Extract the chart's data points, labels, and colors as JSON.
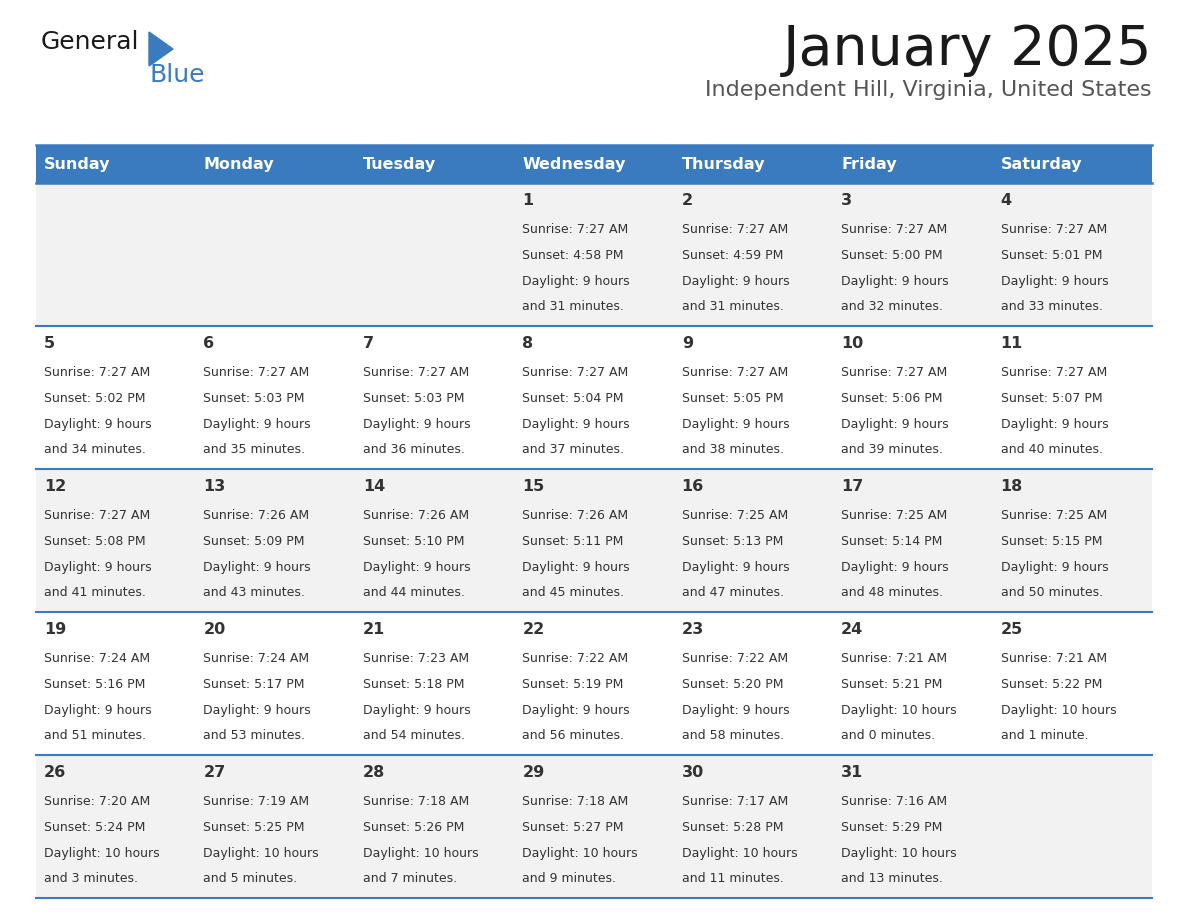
{
  "title": "January 2025",
  "subtitle": "Independent Hill, Virginia, United States",
  "header_color": "#3a7abf",
  "header_text_color": "#ffffff",
  "cell_bg_odd": "#f2f2f2",
  "cell_bg_even": "#ffffff",
  "day_num_color": "#333333",
  "text_color": "#333333",
  "border_color": "#3a7abf",
  "days_of_week": [
    "Sunday",
    "Monday",
    "Tuesday",
    "Wednesday",
    "Thursday",
    "Friday",
    "Saturday"
  ],
  "calendar": [
    [
      {
        "day": "",
        "sunrise": "",
        "sunset": "",
        "daylight_line1": "",
        "daylight_line2": ""
      },
      {
        "day": "",
        "sunrise": "",
        "sunset": "",
        "daylight_line1": "",
        "daylight_line2": ""
      },
      {
        "day": "",
        "sunrise": "",
        "sunset": "",
        "daylight_line1": "",
        "daylight_line2": ""
      },
      {
        "day": "1",
        "sunrise": "Sunrise: 7:27 AM",
        "sunset": "Sunset: 4:58 PM",
        "daylight_line1": "Daylight: 9 hours",
        "daylight_line2": "and 31 minutes."
      },
      {
        "day": "2",
        "sunrise": "Sunrise: 7:27 AM",
        "sunset": "Sunset: 4:59 PM",
        "daylight_line1": "Daylight: 9 hours",
        "daylight_line2": "and 31 minutes."
      },
      {
        "day": "3",
        "sunrise": "Sunrise: 7:27 AM",
        "sunset": "Sunset: 5:00 PM",
        "daylight_line1": "Daylight: 9 hours",
        "daylight_line2": "and 32 minutes."
      },
      {
        "day": "4",
        "sunrise": "Sunrise: 7:27 AM",
        "sunset": "Sunset: 5:01 PM",
        "daylight_line1": "Daylight: 9 hours",
        "daylight_line2": "and 33 minutes."
      }
    ],
    [
      {
        "day": "5",
        "sunrise": "Sunrise: 7:27 AM",
        "sunset": "Sunset: 5:02 PM",
        "daylight_line1": "Daylight: 9 hours",
        "daylight_line2": "and 34 minutes."
      },
      {
        "day": "6",
        "sunrise": "Sunrise: 7:27 AM",
        "sunset": "Sunset: 5:03 PM",
        "daylight_line1": "Daylight: 9 hours",
        "daylight_line2": "and 35 minutes."
      },
      {
        "day": "7",
        "sunrise": "Sunrise: 7:27 AM",
        "sunset": "Sunset: 5:03 PM",
        "daylight_line1": "Daylight: 9 hours",
        "daylight_line2": "and 36 minutes."
      },
      {
        "day": "8",
        "sunrise": "Sunrise: 7:27 AM",
        "sunset": "Sunset: 5:04 PM",
        "daylight_line1": "Daylight: 9 hours",
        "daylight_line2": "and 37 minutes."
      },
      {
        "day": "9",
        "sunrise": "Sunrise: 7:27 AM",
        "sunset": "Sunset: 5:05 PM",
        "daylight_line1": "Daylight: 9 hours",
        "daylight_line2": "and 38 minutes."
      },
      {
        "day": "10",
        "sunrise": "Sunrise: 7:27 AM",
        "sunset": "Sunset: 5:06 PM",
        "daylight_line1": "Daylight: 9 hours",
        "daylight_line2": "and 39 minutes."
      },
      {
        "day": "11",
        "sunrise": "Sunrise: 7:27 AM",
        "sunset": "Sunset: 5:07 PM",
        "daylight_line1": "Daylight: 9 hours",
        "daylight_line2": "and 40 minutes."
      }
    ],
    [
      {
        "day": "12",
        "sunrise": "Sunrise: 7:27 AM",
        "sunset": "Sunset: 5:08 PM",
        "daylight_line1": "Daylight: 9 hours",
        "daylight_line2": "and 41 minutes."
      },
      {
        "day": "13",
        "sunrise": "Sunrise: 7:26 AM",
        "sunset": "Sunset: 5:09 PM",
        "daylight_line1": "Daylight: 9 hours",
        "daylight_line2": "and 43 minutes."
      },
      {
        "day": "14",
        "sunrise": "Sunrise: 7:26 AM",
        "sunset": "Sunset: 5:10 PM",
        "daylight_line1": "Daylight: 9 hours",
        "daylight_line2": "and 44 minutes."
      },
      {
        "day": "15",
        "sunrise": "Sunrise: 7:26 AM",
        "sunset": "Sunset: 5:11 PM",
        "daylight_line1": "Daylight: 9 hours",
        "daylight_line2": "and 45 minutes."
      },
      {
        "day": "16",
        "sunrise": "Sunrise: 7:25 AM",
        "sunset": "Sunset: 5:13 PM",
        "daylight_line1": "Daylight: 9 hours",
        "daylight_line2": "and 47 minutes."
      },
      {
        "day": "17",
        "sunrise": "Sunrise: 7:25 AM",
        "sunset": "Sunset: 5:14 PM",
        "daylight_line1": "Daylight: 9 hours",
        "daylight_line2": "and 48 minutes."
      },
      {
        "day": "18",
        "sunrise": "Sunrise: 7:25 AM",
        "sunset": "Sunset: 5:15 PM",
        "daylight_line1": "Daylight: 9 hours",
        "daylight_line2": "and 50 minutes."
      }
    ],
    [
      {
        "day": "19",
        "sunrise": "Sunrise: 7:24 AM",
        "sunset": "Sunset: 5:16 PM",
        "daylight_line1": "Daylight: 9 hours",
        "daylight_line2": "and 51 minutes."
      },
      {
        "day": "20",
        "sunrise": "Sunrise: 7:24 AM",
        "sunset": "Sunset: 5:17 PM",
        "daylight_line1": "Daylight: 9 hours",
        "daylight_line2": "and 53 minutes."
      },
      {
        "day": "21",
        "sunrise": "Sunrise: 7:23 AM",
        "sunset": "Sunset: 5:18 PM",
        "daylight_line1": "Daylight: 9 hours",
        "daylight_line2": "and 54 minutes."
      },
      {
        "day": "22",
        "sunrise": "Sunrise: 7:22 AM",
        "sunset": "Sunset: 5:19 PM",
        "daylight_line1": "Daylight: 9 hours",
        "daylight_line2": "and 56 minutes."
      },
      {
        "day": "23",
        "sunrise": "Sunrise: 7:22 AM",
        "sunset": "Sunset: 5:20 PM",
        "daylight_line1": "Daylight: 9 hours",
        "daylight_line2": "and 58 minutes."
      },
      {
        "day": "24",
        "sunrise": "Sunrise: 7:21 AM",
        "sunset": "Sunset: 5:21 PM",
        "daylight_line1": "Daylight: 10 hours",
        "daylight_line2": "and 0 minutes."
      },
      {
        "day": "25",
        "sunrise": "Sunrise: 7:21 AM",
        "sunset": "Sunset: 5:22 PM",
        "daylight_line1": "Daylight: 10 hours",
        "daylight_line2": "and 1 minute."
      }
    ],
    [
      {
        "day": "26",
        "sunrise": "Sunrise: 7:20 AM",
        "sunset": "Sunset: 5:24 PM",
        "daylight_line1": "Daylight: 10 hours",
        "daylight_line2": "and 3 minutes."
      },
      {
        "day": "27",
        "sunrise": "Sunrise: 7:19 AM",
        "sunset": "Sunset: 5:25 PM",
        "daylight_line1": "Daylight: 10 hours",
        "daylight_line2": "and 5 minutes."
      },
      {
        "day": "28",
        "sunrise": "Sunrise: 7:18 AM",
        "sunset": "Sunset: 5:26 PM",
        "daylight_line1": "Daylight: 10 hours",
        "daylight_line2": "and 7 minutes."
      },
      {
        "day": "29",
        "sunrise": "Sunrise: 7:18 AM",
        "sunset": "Sunset: 5:27 PM",
        "daylight_line1": "Daylight: 10 hours",
        "daylight_line2": "and 9 minutes."
      },
      {
        "day": "30",
        "sunrise": "Sunrise: 7:17 AM",
        "sunset": "Sunset: 5:28 PM",
        "daylight_line1": "Daylight: 10 hours",
        "daylight_line2": "and 11 minutes."
      },
      {
        "day": "31",
        "sunrise": "Sunrise: 7:16 AM",
        "sunset": "Sunset: 5:29 PM",
        "daylight_line1": "Daylight: 10 hours",
        "daylight_line2": "and 13 minutes."
      },
      {
        "day": "",
        "sunrise": "",
        "sunset": "",
        "daylight_line1": "",
        "daylight_line2": ""
      }
    ]
  ],
  "fig_width": 11.88,
  "fig_height": 9.18,
  "dpi": 100
}
